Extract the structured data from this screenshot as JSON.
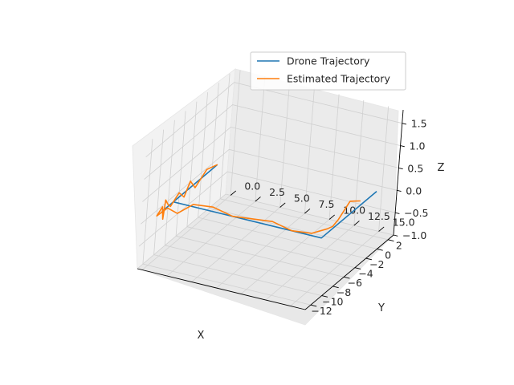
{
  "chart_data": {
    "type": "line",
    "projection": "3d",
    "title": "",
    "xlabel": "X",
    "ylabel": "Y",
    "zlabel": "Z",
    "xlim": [
      -13,
      3
    ],
    "ylim": [
      -0.5,
      16.5
    ],
    "zlim": [
      -1.0,
      1.8
    ],
    "xticks": [
      -12,
      -10,
      -8,
      -6,
      -4,
      -2,
      0,
      2
    ],
    "yticks": [
      0.0,
      2.5,
      5.0,
      7.5,
      10.0,
      12.5,
      15.0
    ],
    "zticks": [
      -1.0,
      -0.5,
      0.0,
      0.5,
      1.0,
      1.5
    ],
    "xtick_labels": [
      "−12",
      "−10",
      "−8",
      "−6",
      "−4",
      "−2",
      "0",
      "2"
    ],
    "ytick_labels": [
      "0.0",
      "2.5",
      "5.0",
      "7.5",
      "10.0",
      "12.5",
      "15.0"
    ],
    "ztick_labels": [
      "−1.0",
      "−0.5",
      "0.0",
      "0.5",
      "1.0",
      "1.5"
    ],
    "grid": true,
    "legend_position": "top-right",
    "series": [
      {
        "name": "Drone Trajectory",
        "color": "#1f77b4",
        "x": [
          0,
          -10,
          -10,
          -8,
          -8,
          -8,
          -8,
          2
        ],
        "y": [
          0,
          0,
          0,
          0,
          15,
          15,
          15,
          15
        ],
        "z": [
          0,
          0,
          0,
          0,
          0,
          0,
          0,
          0
        ]
      },
      {
        "name": "Estimated Trajectory",
        "color": "#ff7f0e",
        "x": [
          0,
          -2,
          -4,
          -5,
          -6,
          -7,
          -8.5,
          -9,
          -9.5,
          -9.8,
          -10,
          -11,
          -10,
          -9,
          -8,
          -8,
          -8,
          -8,
          -8,
          -8,
          -8,
          -7,
          -6,
          -5,
          -4,
          -3,
          -2,
          -1
        ],
        "y": [
          0,
          0,
          0,
          0,
          0,
          0,
          0,
          0,
          0,
          0,
          0,
          0,
          0.5,
          1,
          2,
          4,
          6,
          8,
          10,
          12,
          14,
          15,
          15,
          15,
          15,
          15,
          15,
          15
        ],
        "z": [
          0,
          0.1,
          -0.1,
          0.15,
          -0.1,
          0.1,
          -0.05,
          0.05,
          0.2,
          -0.2,
          0.1,
          0,
          0.1,
          -0.1,
          0.05,
          0.1,
          0,
          0.05,
          0.1,
          0,
          0.05,
          0.1,
          0.05,
          0.1,
          0.2,
          0.3,
          0.2,
          0.1
        ]
      }
    ]
  }
}
